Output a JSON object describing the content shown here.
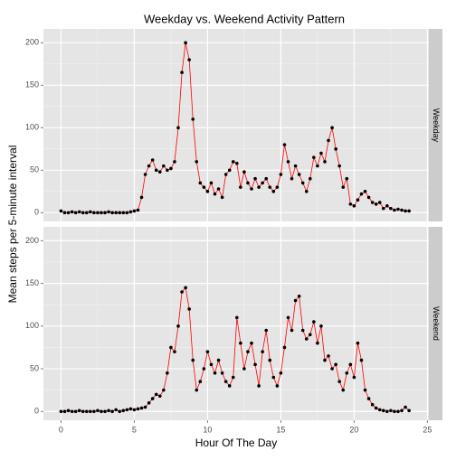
{
  "chart_data": {
    "type": "line",
    "title": "Weekday vs. Weekend Activity Pattern",
    "xlabel": "Hour Of The Day",
    "ylabel": "Mean steps per 5-minute interval",
    "x": [
      0,
      0.25,
      0.5,
      0.75,
      1,
      1.25,
      1.5,
      1.75,
      2,
      2.25,
      2.5,
      2.75,
      3,
      3.25,
      3.5,
      3.75,
      4,
      4.25,
      4.5,
      4.75,
      5,
      5.25,
      5.5,
      5.75,
      6,
      6.25,
      6.5,
      6.75,
      7,
      7.25,
      7.5,
      7.75,
      8,
      8.25,
      8.5,
      8.75,
      9,
      9.25,
      9.5,
      9.75,
      10,
      10.25,
      10.5,
      10.75,
      11,
      11.25,
      11.5,
      11.75,
      12,
      12.25,
      12.5,
      12.75,
      13,
      13.25,
      13.5,
      13.75,
      14,
      14.25,
      14.5,
      14.75,
      15,
      15.25,
      15.5,
      15.75,
      16,
      16.25,
      16.5,
      16.75,
      17,
      17.25,
      17.5,
      17.75,
      18,
      18.25,
      18.5,
      18.75,
      19,
      19.25,
      19.5,
      19.75,
      20,
      20.25,
      20.5,
      20.75,
      21,
      21.25,
      21.5,
      21.75,
      22,
      22.25,
      22.5,
      22.75,
      23,
      23.25,
      23.5,
      23.75
    ],
    "series": [
      {
        "name": "Weekday",
        "color": "#ff0000",
        "point_color": "#000000",
        "values": [
          2,
          0,
          0,
          1,
          0,
          1,
          0,
          0,
          1,
          0,
          0,
          0,
          0,
          1,
          0,
          0,
          0,
          0,
          0,
          1,
          2,
          3,
          18,
          45,
          55,
          62,
          50,
          48,
          55,
          50,
          52,
          60,
          100,
          165,
          200,
          180,
          110,
          60,
          35,
          30,
          25,
          35,
          22,
          28,
          18,
          45,
          50,
          60,
          58,
          30,
          48,
          35,
          28,
          40,
          30,
          35,
          40,
          30,
          25,
          30,
          45,
          80,
          60,
          40,
          55,
          45,
          35,
          25,
          40,
          65,
          55,
          70,
          60,
          85,
          100,
          75,
          55,
          30,
          40,
          10,
          8,
          15,
          22,
          25,
          18,
          12,
          10,
          12,
          5,
          8,
          5,
          3,
          4,
          3,
          2,
          2
        ]
      },
      {
        "name": "Weekend",
        "color": "#ff0000",
        "point_color": "#000000",
        "values": [
          0,
          0,
          1,
          0,
          0,
          1,
          0,
          0,
          0,
          0,
          1,
          0,
          0,
          1,
          0,
          2,
          0,
          1,
          2,
          3,
          2,
          3,
          4,
          5,
          10,
          15,
          20,
          18,
          25,
          45,
          75,
          70,
          100,
          140,
          145,
          120,
          60,
          25,
          35,
          50,
          70,
          55,
          45,
          60,
          45,
          35,
          30,
          40,
          110,
          80,
          50,
          70,
          80,
          55,
          30,
          70,
          95,
          60,
          40,
          30,
          45,
          75,
          110,
          95,
          130,
          135,
          95,
          85,
          90,
          105,
          80,
          100,
          60,
          65,
          50,
          55,
          35,
          25,
          45,
          55,
          40,
          80,
          60,
          25,
          15,
          8,
          4,
          2,
          1,
          0,
          1,
          0,
          0,
          1,
          5,
          1
        ]
      }
    ],
    "xlim": [
      -1.2,
      25.1
    ],
    "xticks": [
      0,
      5,
      10,
      15,
      20,
      25
    ],
    "ylim": [
      -10.3,
      216.3
    ],
    "yticks": [
      0,
      50,
      100,
      150,
      200
    ],
    "grid": true
  }
}
